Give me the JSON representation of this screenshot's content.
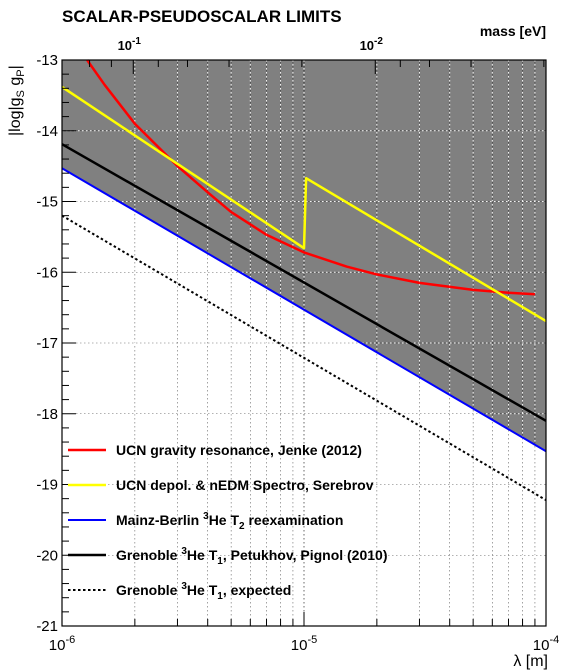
{
  "chart_data": {
    "type": "line",
    "title": "SCALAR-PSEUDOSCALAR LIMITS",
    "xlabel": "λ  [m]",
    "ylabel": "|log|g_S g_P|",
    "top_axis_label": "mass [eV]",
    "x_scale": "log",
    "xlim": [
      1e-06,
      0.0001
    ],
    "ylim": [
      -21,
      -13
    ],
    "grid": true,
    "excluded_region_fill": "#808080",
    "x_ticks": [
      {
        "value": 1e-06,
        "base": "10",
        "exp": "-6"
      },
      {
        "value": 1e-05,
        "base": "10",
        "exp": "-5"
      },
      {
        "value": 0.0001,
        "base": "10",
        "exp": "-4"
      }
    ],
    "top_ticks": [
      {
        "lambda": 1.97e-06,
        "base": "10",
        "exp": "-1"
      },
      {
        "lambda": 1.97e-05,
        "base": "10",
        "exp": "-2"
      }
    ],
    "y_ticks": [
      {
        "value": -13,
        "label": "-13"
      },
      {
        "value": -14,
        "label": "-14"
      },
      {
        "value": -15,
        "label": "-15"
      },
      {
        "value": -16,
        "label": "-16"
      },
      {
        "value": -17,
        "label": "-17"
      },
      {
        "value": -18,
        "label": "-18"
      },
      {
        "value": -19,
        "label": "-19"
      },
      {
        "value": -20,
        "label": "-20"
      },
      {
        "value": -21,
        "label": "-21"
      }
    ],
    "series": [
      {
        "name": "UCN gravity resonance, Jenke (2012)",
        "color": "#ff0000",
        "dash": "none",
        "width": 2.5,
        "x": [
          1.27e-06,
          1.5e-06,
          2e-06,
          3e-06,
          4e-06,
          5e-06,
          7e-06,
          1e-05,
          1.5e-05,
          2e-05,
          3e-05,
          5e-05,
          7e-05,
          9e-05
        ],
        "y": [
          -13.0,
          -13.35,
          -13.9,
          -14.5,
          -14.87,
          -15.15,
          -15.47,
          -15.72,
          -15.92,
          -16.03,
          -16.15,
          -16.25,
          -16.29,
          -16.31
        ]
      },
      {
        "name": "UCN depol. & nEDM Spectro, Serebrov",
        "color": "#ffff00",
        "dash": "none",
        "width": 2.5,
        "x": [
          1e-06,
          1e-05,
          1.02e-05,
          0.0001
        ],
        "y": [
          -13.38,
          -15.66,
          -14.67,
          -16.69
        ]
      },
      {
        "name": "Mainz-Berlin ³He T₂ reexamination",
        "color": "#0000ff",
        "dash": "none",
        "width": 2,
        "x": [
          1e-06,
          0.0001
        ],
        "y": [
          -14.53,
          -18.53
        ]
      },
      {
        "name": "Grenoble ³He T₁, Petukhov, Pignol (2010)",
        "color": "#000000",
        "dash": "none",
        "width": 2.5,
        "x": [
          1e-06,
          0.0001
        ],
        "y": [
          -14.19,
          -18.1
        ]
      },
      {
        "name": "Grenoble ³He T₁, expected",
        "color": "#000000",
        "dash": "dotted",
        "width": 2,
        "x": [
          1e-06,
          0.0001
        ],
        "y": [
          -15.2,
          -19.22
        ]
      }
    ],
    "legend": {
      "placement": "bottom-left",
      "entries": [
        {
          "parts": [
            {
              "t": "UCN gravity resonance, Jenke (2012)"
            }
          ]
        },
        {
          "parts": [
            {
              "t": "UCN depol. & nEDM Spectro, Serebrov"
            }
          ]
        },
        {
          "parts": [
            {
              "t": "Mainz-Berlin "
            },
            {
              "t": "3",
              "sup": true
            },
            {
              "t": "He T"
            },
            {
              "t": "2",
              "sub": true
            },
            {
              "t": " reexamination"
            }
          ]
        },
        {
          "parts": [
            {
              "t": "Grenoble "
            },
            {
              "t": "3",
              "sup": true
            },
            {
              "t": "He T"
            },
            {
              "t": "1",
              "sub": true
            },
            {
              "t": ", Petukhov, Pignol (2010)"
            }
          ]
        },
        {
          "parts": [
            {
              "t": "Grenoble "
            },
            {
              "t": "3",
              "sup": true
            },
            {
              "t": "He T"
            },
            {
              "t": "1",
              "sub": true
            },
            {
              "t": ", expected"
            }
          ]
        }
      ]
    }
  }
}
